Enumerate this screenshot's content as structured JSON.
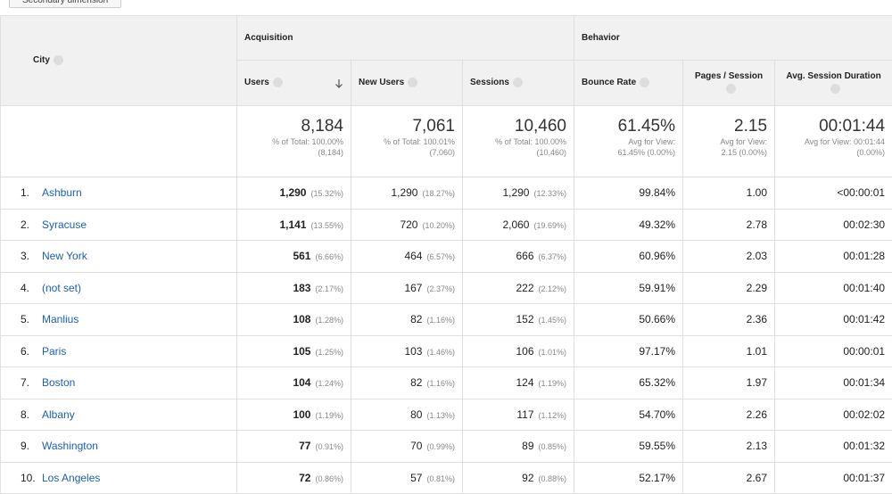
{
  "button": "Secondary dimension",
  "table": {
    "dimension": "City",
    "groups": [
      "Acquisition",
      "Behavior"
    ],
    "columns": [
      "Users",
      "New Users",
      "Sessions",
      "Bounce Rate",
      "Pages / Session",
      "Avg. Session Duration"
    ],
    "totals": [
      {
        "value": "8,184",
        "lines": [
          "% of Total: 100.00%",
          "(8,184)"
        ]
      },
      {
        "value": "7,061",
        "lines": [
          "% of Total: 100.01%",
          "(7,060)"
        ]
      },
      {
        "value": "10,460",
        "lines": [
          "% of Total: 100.00%",
          "(10,460)"
        ]
      },
      {
        "value": "61.45%",
        "lines": [
          "Avg for View:",
          "61.45% (0.00%)"
        ]
      },
      {
        "value": "2.15",
        "lines": [
          "Avg for View:",
          "2.15 (0.00%)"
        ]
      },
      {
        "value": "00:01:44",
        "lines": [
          "Avg for View: 00:01:44",
          "(0.00%)"
        ]
      }
    ],
    "rows": [
      {
        "index": "1.",
        "city": "Ashburn",
        "cells": [
          {
            "value": "1,290",
            "pct": "(15.32%)"
          },
          {
            "value": "1,290",
            "pct": "(18.27%)"
          },
          {
            "value": "1,290",
            "pct": "(12.33%)"
          },
          {
            "value": "99.84%"
          },
          {
            "value": "1.00"
          },
          {
            "value": "<00:00:01"
          }
        ]
      },
      {
        "index": "2.",
        "city": "Syracuse",
        "cells": [
          {
            "value": "1,141",
            "pct": "(13.55%)"
          },
          {
            "value": "720",
            "pct": "(10.20%)"
          },
          {
            "value": "2,060",
            "pct": "(19.69%)"
          },
          {
            "value": "49.32%"
          },
          {
            "value": "2.78"
          },
          {
            "value": "00:02:30"
          }
        ]
      },
      {
        "index": "3.",
        "city": "New York",
        "cells": [
          {
            "value": "561",
            "pct": "(6.66%)"
          },
          {
            "value": "464",
            "pct": "(6.57%)"
          },
          {
            "value": "666",
            "pct": "(6.37%)"
          },
          {
            "value": "60.96%"
          },
          {
            "value": "2.03"
          },
          {
            "value": "00:01:28"
          }
        ]
      },
      {
        "index": "4.",
        "city": "(not set)",
        "cells": [
          {
            "value": "183",
            "pct": "(2.17%)"
          },
          {
            "value": "167",
            "pct": "(2.37%)"
          },
          {
            "value": "222",
            "pct": "(2.12%)"
          },
          {
            "value": "59.91%"
          },
          {
            "value": "2.29"
          },
          {
            "value": "00:01:40"
          }
        ]
      },
      {
        "index": "5.",
        "city": "Manlius",
        "cells": [
          {
            "value": "108",
            "pct": "(1.28%)"
          },
          {
            "value": "82",
            "pct": "(1.16%)"
          },
          {
            "value": "152",
            "pct": "(1.45%)"
          },
          {
            "value": "50.66%"
          },
          {
            "value": "2.36"
          },
          {
            "value": "00:01:42"
          }
        ]
      },
      {
        "index": "6.",
        "city": "Paris",
        "cells": [
          {
            "value": "105",
            "pct": "(1.25%)"
          },
          {
            "value": "103",
            "pct": "(1.46%)"
          },
          {
            "value": "106",
            "pct": "(1.01%)"
          },
          {
            "value": "97.17%"
          },
          {
            "value": "1.01"
          },
          {
            "value": "00:00:01"
          }
        ]
      },
      {
        "index": "7.",
        "city": "Boston",
        "cells": [
          {
            "value": "104",
            "pct": "(1.24%)"
          },
          {
            "value": "82",
            "pct": "(1.16%)"
          },
          {
            "value": "124",
            "pct": "(1.19%)"
          },
          {
            "value": "65.32%"
          },
          {
            "value": "1.97"
          },
          {
            "value": "00:01:34"
          }
        ]
      },
      {
        "index": "8.",
        "city": "Albany",
        "cells": [
          {
            "value": "100",
            "pct": "(1.19%)"
          },
          {
            "value": "80",
            "pct": "(1.13%)"
          },
          {
            "value": "117",
            "pct": "(1.12%)"
          },
          {
            "value": "54.70%"
          },
          {
            "value": "2.26"
          },
          {
            "value": "00:02:02"
          }
        ]
      },
      {
        "index": "9.",
        "city": "Washington",
        "cells": [
          {
            "value": "77",
            "pct": "(0.91%)"
          },
          {
            "value": "70",
            "pct": "(0.99%)"
          },
          {
            "value": "89",
            "pct": "(0.85%)"
          },
          {
            "value": "59.55%"
          },
          {
            "value": "2.13"
          },
          {
            "value": "00:01:32"
          }
        ]
      },
      {
        "index": "10.",
        "city": "Los Angeles",
        "cells": [
          {
            "value": "72",
            "pct": "(0.86%)"
          },
          {
            "value": "57",
            "pct": "(0.81%)"
          },
          {
            "value": "92",
            "pct": "(0.88%)"
          },
          {
            "value": "52.17%"
          },
          {
            "value": "2.67"
          },
          {
            "value": "00:01:37"
          }
        ]
      }
    ]
  }
}
